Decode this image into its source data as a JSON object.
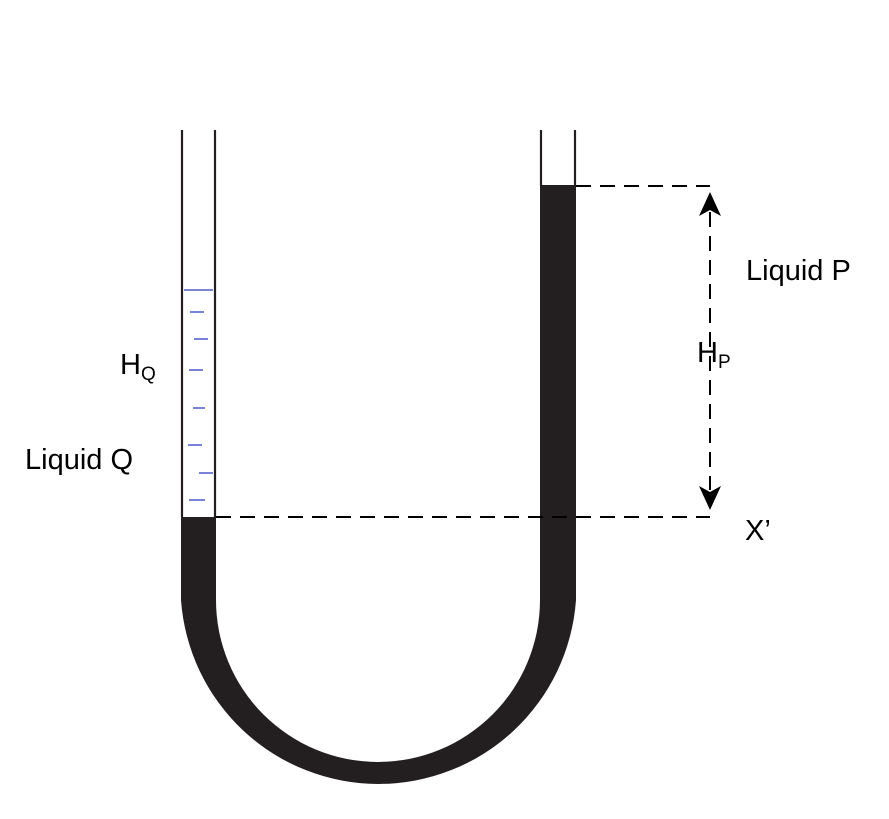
{
  "labels": {
    "liquid_p": "Liquid P",
    "liquid_q": "Liquid Q",
    "h_p": {
      "main": "H",
      "sub": "P"
    },
    "h_q": {
      "main": "H",
      "sub": "Q"
    },
    "x_prime": "X’"
  },
  "colors": {
    "liquid_p": "#231f20",
    "tube_wall": "#231f20",
    "liquid_q_marks": "#2f3fbf",
    "dashed_line": "#000000",
    "background": "#ffffff"
  }
}
